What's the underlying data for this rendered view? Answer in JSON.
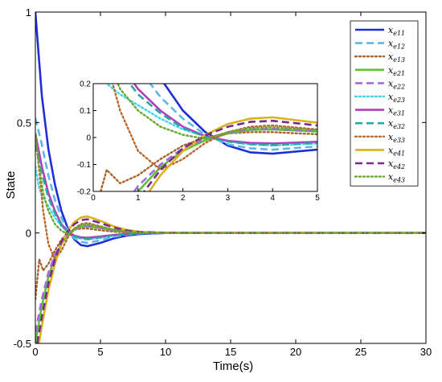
{
  "chart_data": {
    "type": "line",
    "xlabel": "Time(s)",
    "ylabel": "State",
    "xlim": [
      0,
      30
    ],
    "ylim": [
      -0.5,
      1
    ],
    "x_ticks": [
      "0",
      "5",
      "10",
      "15",
      "20",
      "25",
      "30"
    ],
    "y_ticks": [
      "-0.5",
      "0",
      "0.5",
      "1"
    ],
    "grid": false,
    "legend_position": "top-right",
    "inset": {
      "xlim": [
        0,
        5
      ],
      "ylim": [
        -0.2,
        0.2
      ],
      "x_ticks": [
        "0",
        "1",
        "2",
        "3",
        "4",
        "5"
      ],
      "y_ticks": [
        "-0.2",
        "-0.1",
        "0",
        "0.1",
        "0.2"
      ]
    },
    "series": [
      {
        "name": "x_e11",
        "label_main": "x",
        "label_sub": "e11",
        "color": "#1f2fd6",
        "style": "solid",
        "x": [
          0,
          0.5,
          1,
          1.5,
          2,
          2.5,
          3,
          3.5,
          4,
          5,
          6,
          7,
          8,
          10,
          12,
          15,
          20,
          30
        ],
        "y": [
          1,
          0.62,
          0.38,
          0.22,
          0.1,
          0.02,
          -0.03,
          -0.055,
          -0.06,
          -0.045,
          -0.025,
          -0.012,
          -0.005,
          0,
          0,
          0,
          0,
          0
        ]
      },
      {
        "name": "x_e12",
        "label_main": "x",
        "label_sub": "e12",
        "color": "#5fb6e8",
        "style": "dashed",
        "x": [
          0,
          0.5,
          1,
          1.5,
          2,
          2.5,
          3,
          3.5,
          4,
          5,
          6,
          7,
          8,
          10,
          12,
          15,
          20,
          30
        ],
        "y": [
          0.52,
          0.4,
          0.26,
          0.15,
          0.07,
          0.01,
          -0.025,
          -0.04,
          -0.045,
          -0.033,
          -0.018,
          -0.008,
          -0.003,
          0,
          0,
          0,
          0,
          0
        ]
      },
      {
        "name": "x_e13",
        "label_main": "x",
        "label_sub": "e13",
        "color": "#a8642a",
        "style": "dotted",
        "x": [
          0,
          0.3,
          0.6,
          1,
          1.5,
          2,
          2.5,
          3,
          3.5,
          4,
          5,
          6,
          7,
          8,
          10,
          12,
          15,
          20,
          30
        ],
        "y": [
          -0.3,
          -0.12,
          -0.17,
          -0.14,
          -0.08,
          -0.03,
          0,
          0.015,
          0.02,
          0.02,
          0.012,
          0.006,
          0.002,
          0,
          0,
          0,
          0,
          0,
          0
        ]
      },
      {
        "name": "x_e21",
        "label_main": "x",
        "label_sub": "e21",
        "color": "#5bc236",
        "style": "solid",
        "x": [
          0,
          0.5,
          1,
          1.5,
          2,
          2.5,
          3,
          3.5,
          4,
          5,
          6,
          7,
          8,
          10,
          12,
          15,
          20,
          30
        ],
        "y": [
          -0.5,
          -0.33,
          -0.2,
          -0.11,
          -0.05,
          -0.01,
          0.015,
          0.028,
          0.03,
          0.022,
          0.012,
          0.005,
          0.002,
          0,
          0,
          0,
          0,
          0
        ]
      },
      {
        "name": "x_e22",
        "label_main": "x",
        "label_sub": "e22",
        "color": "#a56ae0",
        "style": "dashed",
        "x": [
          0,
          0.5,
          1,
          1.5,
          2,
          2.5,
          3,
          3.5,
          4,
          5,
          6,
          7,
          8,
          10,
          12,
          15,
          20,
          30
        ],
        "y": [
          -0.45,
          -0.3,
          -0.18,
          -0.1,
          -0.04,
          -0.005,
          0.018,
          0.03,
          0.032,
          0.024,
          0.013,
          0.006,
          0.002,
          0,
          0,
          0,
          0,
          0
        ]
      },
      {
        "name": "x_e23",
        "label_main": "x",
        "label_sub": "e23",
        "color": "#3fd6e6",
        "style": "dotted",
        "x": [
          0,
          0.3,
          0.6,
          1,
          1.5,
          2,
          2.5,
          3,
          3.5,
          4,
          5,
          6,
          7,
          8,
          10,
          12,
          15,
          20,
          30
        ],
        "y": [
          0.3,
          0.2,
          0.16,
          0.12,
          0.07,
          0.03,
          0.005,
          -0.015,
          -0.025,
          -0.03,
          -0.022,
          -0.012,
          -0.005,
          -0.002,
          0,
          0,
          0,
          0,
          0
        ]
      },
      {
        "name": "x_e31",
        "label_main": "x",
        "label_sub": "e31",
        "color": "#b43cc3",
        "style": "solid",
        "x": [
          0,
          0.5,
          1,
          1.5,
          2,
          2.5,
          3,
          3.5,
          4,
          5,
          6,
          7,
          8,
          10,
          12,
          15,
          20,
          30
        ],
        "y": [
          0.45,
          0.3,
          0.18,
          0.1,
          0.04,
          0.005,
          -0.012,
          -0.02,
          -0.022,
          -0.016,
          -0.009,
          -0.004,
          -0.001,
          0,
          0,
          0,
          0,
          0
        ]
      },
      {
        "name": "x_e32",
        "label_main": "x",
        "label_sub": "e32",
        "color": "#2aa7a0",
        "style": "dashed",
        "x": [
          0,
          0.5,
          1,
          1.5,
          2,
          2.5,
          3,
          3.5,
          4,
          5,
          6,
          7,
          8,
          10,
          12,
          15,
          20,
          30
        ],
        "y": [
          0.4,
          0.27,
          0.16,
          0.09,
          0.035,
          0.003,
          -0.015,
          -0.025,
          -0.028,
          -0.02,
          -0.011,
          -0.005,
          -0.002,
          0,
          0,
          0,
          0,
          0
        ]
      },
      {
        "name": "x_e33",
        "label_main": "x",
        "label_sub": "e33",
        "color": "#b8692e",
        "style": "dotted",
        "x": [
          0,
          0.3,
          0.6,
          1,
          1.5,
          2,
          2.5,
          3,
          3.5,
          4,
          5,
          6,
          7,
          8,
          10,
          12,
          15,
          20,
          30
        ],
        "y": [
          0.45,
          0.28,
          0.1,
          -0.05,
          -0.12,
          -0.08,
          -0.02,
          0.02,
          0.04,
          0.045,
          0.03,
          0.015,
          0.006,
          0.002,
          0,
          0,
          0,
          0,
          0
        ]
      },
      {
        "name": "x_e41",
        "label_main": "x",
        "label_sub": "e41",
        "color": "#d9b21c",
        "style": "solid",
        "x": [
          0,
          0.5,
          1,
          1.5,
          2,
          2.5,
          3,
          3.5,
          4,
          5,
          6,
          7,
          8,
          10,
          12,
          15,
          20,
          30
        ],
        "y": [
          -0.6,
          -0.42,
          -0.26,
          -0.14,
          -0.05,
          0.01,
          0.05,
          0.07,
          0.075,
          0.055,
          0.03,
          0.014,
          0.005,
          0.001,
          0,
          0,
          0,
          0
        ]
      },
      {
        "name": "x_e42",
        "label_main": "x",
        "label_sub": "e42",
        "color": "#7a2a8c",
        "style": "dashed",
        "x": [
          0,
          0.5,
          1,
          1.5,
          2,
          2.5,
          3,
          3.5,
          4,
          5,
          6,
          7,
          8,
          10,
          12,
          15,
          20,
          30
        ],
        "y": [
          -0.55,
          -0.38,
          -0.23,
          -0.12,
          -0.04,
          0.008,
          0.04,
          0.058,
          0.062,
          0.045,
          0.025,
          0.011,
          0.004,
          0.001,
          0,
          0,
          0,
          0
        ]
      },
      {
        "name": "x_e43",
        "label_main": "x",
        "label_sub": "e43",
        "color": "#6aa832",
        "style": "dotted",
        "x": [
          0,
          0.3,
          0.6,
          1,
          1.5,
          2,
          2.5,
          3,
          3.5,
          4,
          5,
          6,
          7,
          8,
          10,
          12,
          15,
          20,
          30
        ],
        "y": [
          0.45,
          0.3,
          0.18,
          0.1,
          0.04,
          0.01,
          -0.005,
          0.02,
          0.035,
          0.038,
          0.028,
          0.015,
          0.006,
          0.002,
          0,
          0,
          0,
          0,
          0
        ]
      }
    ]
  }
}
